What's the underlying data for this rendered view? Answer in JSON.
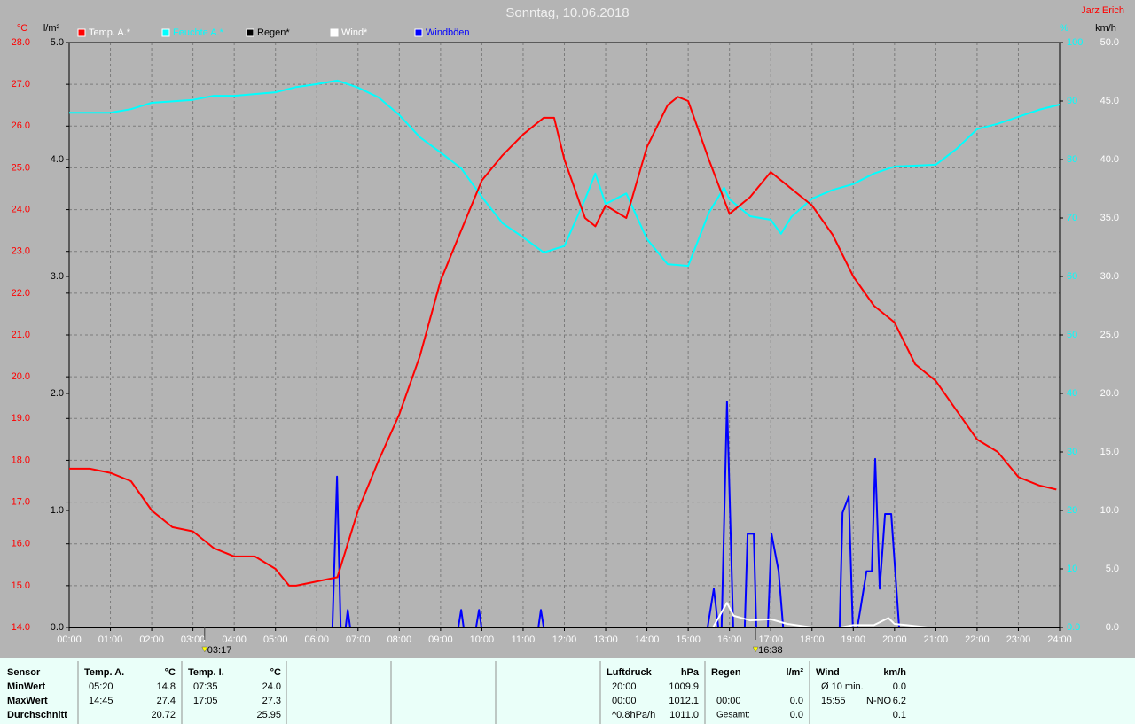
{
  "chart_data": {
    "type": "line",
    "title": "Sonntag, 10.06.2018",
    "author": "Jarz Erich",
    "y_label": "°C",
    "y2_label": "l/m²",
    "y3_label": "%",
    "y4_label": "km/h",
    "grid": true,
    "legend": "top-left",
    "xlim": [
      0,
      24
    ],
    "xticks": [
      {
        "value": 0,
        "label": "00:00"
      },
      {
        "value": 1,
        "label": "01:00"
      },
      {
        "value": 2,
        "label": "02:00"
      },
      {
        "value": 3,
        "label": "03:00"
      },
      {
        "value": 4,
        "label": "04:00"
      },
      {
        "value": 5,
        "label": "05:00"
      },
      {
        "value": 6,
        "label": "06:00"
      },
      {
        "value": 7,
        "label": "07:00"
      },
      {
        "value": 8,
        "label": "08:00"
      },
      {
        "value": 9,
        "label": "09:00"
      },
      {
        "value": 10,
        "label": "10:00"
      },
      {
        "value": 11,
        "label": "11:00"
      },
      {
        "value": 12,
        "label": "12:00"
      },
      {
        "value": 13,
        "label": "13:00"
      },
      {
        "value": 14,
        "label": "14:00"
      },
      {
        "value": 15,
        "label": "15:00"
      },
      {
        "value": 16,
        "label": "16:00"
      },
      {
        "value": 17,
        "label": "17:00"
      },
      {
        "value": 18,
        "label": "18:00"
      },
      {
        "value": 19,
        "label": "19:00"
      },
      {
        "value": 20,
        "label": "20:00"
      },
      {
        "value": 21,
        "label": "21:00"
      },
      {
        "value": 22,
        "label": "22:00"
      },
      {
        "value": 23,
        "label": "23:00"
      },
      {
        "value": 24,
        "label": "24:00"
      }
    ],
    "ylim": [
      14,
      28
    ],
    "yticks": [
      {
        "value": 14,
        "label": "14.0"
      },
      {
        "value": 15,
        "label": "15.0"
      },
      {
        "value": 16,
        "label": "16.0"
      },
      {
        "value": 17,
        "label": "17.0"
      },
      {
        "value": 18,
        "label": "18.0"
      },
      {
        "value": 19,
        "label": "19.0"
      },
      {
        "value": 20,
        "label": "20.0"
      },
      {
        "value": 21,
        "label": "21.0"
      },
      {
        "value": 22,
        "label": "22.0"
      },
      {
        "value": 23,
        "label": "23.0"
      },
      {
        "value": 24,
        "label": "24.0"
      },
      {
        "value": 25,
        "label": "25.0"
      },
      {
        "value": 26,
        "label": "26.0"
      },
      {
        "value": 27,
        "label": "27.0"
      },
      {
        "value": 28,
        "label": "28.0"
      }
    ],
    "y2lim": [
      0,
      5
    ],
    "y2ticks": [
      {
        "value": 0,
        "label": "0.0"
      },
      {
        "value": 1,
        "label": "1.0"
      },
      {
        "value": 2,
        "label": "2.0"
      },
      {
        "value": 3,
        "label": "3.0"
      },
      {
        "value": 4,
        "label": "4.0"
      },
      {
        "value": 5,
        "label": "5.0"
      }
    ],
    "y3lim": [
      0,
      100
    ],
    "y3ticks": [
      {
        "value": 0,
        "label": "0.0"
      },
      10,
      20,
      30,
      40,
      50,
      60,
      70,
      80,
      90,
      100
    ],
    "y4lim": [
      0,
      50
    ],
    "y4ticks": [
      {
        "value": 0,
        "label": "0.0"
      },
      {
        "value": 5,
        "label": "5.0"
      },
      {
        "value": 10,
        "label": "10.0"
      },
      {
        "value": 15,
        "label": "15.0"
      },
      {
        "value": 20,
        "label": "20.0"
      },
      {
        "value": 25,
        "label": "25.0"
      },
      {
        "value": 30,
        "label": "30.0"
      },
      {
        "value": 35,
        "label": "35.0"
      },
      {
        "value": 40,
        "label": "40.0"
      },
      {
        "value": 45,
        "label": "45.0"
      },
      {
        "value": 50,
        "label": "50.0"
      }
    ],
    "series": [
      {
        "name": "Temp. A.*",
        "color": "#ff0000",
        "axis": "y",
        "x": [
          0,
          0.5,
          1,
          1.5,
          2,
          2.5,
          3,
          3.5,
          4,
          4.5,
          5,
          5.33,
          5.5,
          6,
          6.5,
          7,
          7.5,
          8,
          8.5,
          9,
          9.5,
          10,
          10.5,
          11,
          11.5,
          11.75,
          12,
          12.5,
          12.75,
          13,
          13.5,
          14,
          14.5,
          14.75,
          15,
          15.5,
          16,
          16.5,
          17,
          17.5,
          18,
          18.5,
          19,
          19.5,
          20,
          20.5,
          21,
          21.5,
          22,
          22.5,
          23,
          23.5,
          23.92
        ],
        "values": [
          17.8,
          17.8,
          17.7,
          17.5,
          16.8,
          16.4,
          16.3,
          15.9,
          15.7,
          15.7,
          15.4,
          15.0,
          15.0,
          15.1,
          15.2,
          16.8,
          18.0,
          19.1,
          20.5,
          22.3,
          23.5,
          24.7,
          25.3,
          25.8,
          26.2,
          26.2,
          25.2,
          23.8,
          23.6,
          24.1,
          23.8,
          25.5,
          26.5,
          26.7,
          26.6,
          25.2,
          23.9,
          24.3,
          24.9,
          24.5,
          24.1,
          23.4,
          22.4,
          21.7,
          21.3,
          20.3,
          19.9,
          19.2,
          18.5,
          18.2,
          17.6,
          17.4,
          17.3
        ]
      },
      {
        "name": "Feuchte A.*",
        "color": "#00ffff",
        "axis": "y3",
        "x": [
          0,
          1,
          1.5,
          2,
          3,
          3.5,
          4,
          5,
          5.5,
          6,
          6.5,
          7,
          7.5,
          8,
          8.5,
          9,
          9.5,
          10,
          10.5,
          11,
          11.5,
          12,
          12.5,
          12.75,
          13,
          13.5,
          14,
          14.5,
          15,
          15.5,
          15.87,
          16,
          16.5,
          17,
          17.25,
          17.5,
          18,
          18.5,
          19,
          19.5,
          20,
          21,
          21.5,
          22,
          22.5,
          23,
          23.5,
          24
        ],
        "values": [
          88.0,
          88.0,
          88.6,
          89.7,
          90.2,
          90.9,
          90.9,
          91.5,
          92.4,
          92.9,
          93.5,
          92.3,
          90.6,
          87.6,
          83.8,
          81.2,
          78.5,
          73.6,
          69.1,
          66.7,
          64.1,
          65.2,
          73.2,
          77.6,
          72.4,
          74.2,
          66.4,
          62.1,
          61.8,
          70.9,
          75.2,
          73.2,
          70.3,
          69.7,
          67.3,
          70.2,
          73.3,
          74.8,
          75.8,
          77.6,
          78.8,
          79.1,
          81.8,
          85.2,
          86.1,
          87.3,
          88.5,
          89.4
        ]
      },
      {
        "name": "Regen*",
        "color": "#000000",
        "axis": "y2",
        "x": [
          0,
          24
        ],
        "values": [
          0,
          0
        ]
      },
      {
        "name": "Wind*",
        "color": "#ffffff",
        "axis": "y4",
        "x": [
          0,
          15.6,
          15.94,
          16.1,
          16.5,
          17.0,
          17.4,
          18.0,
          18.7,
          19.0,
          19.5,
          19.85,
          20.0,
          20.3,
          20.8,
          24
        ],
        "values": [
          0,
          0,
          2.1,
          1.0,
          0.6,
          0.7,
          0.3,
          0,
          0,
          0.2,
          0.2,
          0.8,
          0.3,
          0.2,
          0,
          0
        ]
      },
      {
        "name": "Windböen",
        "color": "#0000ff",
        "axis": "y4",
        "x": [
          0,
          6.38,
          6.49,
          6.58,
          6.7,
          6.75,
          6.81,
          9.43,
          9.5,
          9.56,
          9.86,
          9.93,
          9.99,
          11.37,
          11.43,
          11.5,
          15.47,
          15.62,
          15.73,
          15.81,
          15.94,
          16.09,
          16.37,
          16.44,
          16.59,
          16.65,
          16.93,
          17.02,
          17.19,
          17.3,
          18.67,
          18.74,
          18.89,
          18.99,
          19.1,
          19.17,
          19.32,
          19.45,
          19.53,
          19.64,
          19.77,
          19.92,
          20.11,
          24
        ],
        "values": [
          0,
          0,
          12.9,
          0,
          0,
          1.5,
          0,
          0,
          1.5,
          0,
          0,
          1.5,
          0,
          0,
          1.5,
          0,
          0,
          3.3,
          0,
          0,
          19.3,
          0,
          0,
          8.0,
          8.0,
          0,
          0,
          8.0,
          4.8,
          0,
          0,
          9.8,
          11.2,
          0,
          0,
          1.5,
          4.8,
          4.8,
          14.4,
          3.3,
          9.7,
          9.7,
          0,
          0
        ]
      }
    ],
    "annotations": [
      {
        "x": 3.283,
        "label": "03:17"
      },
      {
        "x": 16.633,
        "label": "16:38"
      }
    ]
  },
  "table": {
    "row_labels": [
      "Sensor",
      "MinWert",
      "MaxWert",
      "Durchschnitt"
    ],
    "temp_a": {
      "title": "Temp. A.",
      "unit": "°C",
      "rows": [
        {
          "time": "05:20",
          "value": "14.8"
        },
        {
          "time": "14:45",
          "value": "27.4"
        },
        {
          "value": "20.72"
        }
      ]
    },
    "temp_i": {
      "title": "Temp. I.",
      "unit": "°C",
      "rows": [
        {
          "time": "07:35",
          "value": "24.0"
        },
        {
          "time": "17:05",
          "value": "27.3"
        },
        {
          "value": "25.95"
        }
      ]
    },
    "luftdruck": {
      "title": "Luftdruck",
      "unit": "hPa",
      "rows": [
        {
          "time": "20:00",
          "value": "1009.9"
        },
        {
          "time": "00:00",
          "value": "1012.1"
        },
        {
          "time": "^0.8hPa/h",
          "value": "1011.0"
        }
      ]
    },
    "regen": {
      "title": "Regen",
      "unit": "l/m²",
      "rows": [
        {
          "time": "00:00",
          "value": "0.0"
        },
        {
          "time": "Gesamt:",
          "value": "0.0"
        }
      ]
    },
    "wind": {
      "title": "Wind",
      "unit": "km/h",
      "rows": [
        {
          "time": "Ø 10 min.",
          "value": "0.0"
        },
        {
          "time": "15:55",
          "dir": "N-NO",
          "value": "6.2"
        },
        {
          "value": "0.1"
        }
      ]
    }
  }
}
